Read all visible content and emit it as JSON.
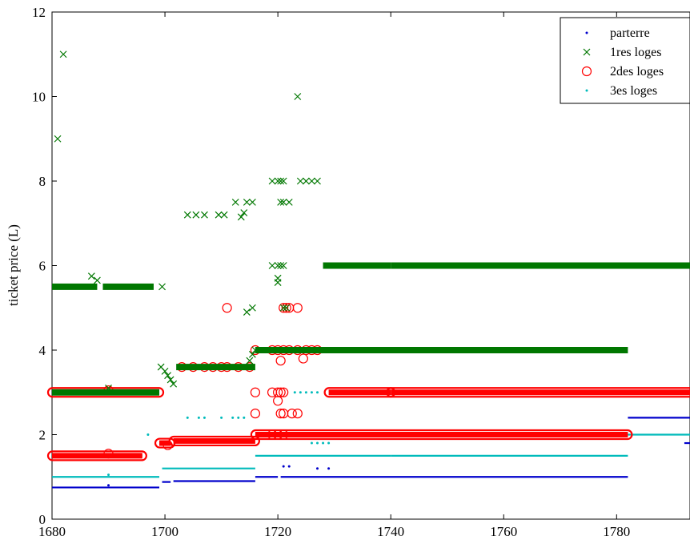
{
  "chart_data": {
    "type": "scatter",
    "title": "",
    "xlabel": "",
    "ylabel": "ticket price (L)",
    "xlim": [
      1680,
      1793
    ],
    "ylim": [
      0,
      12
    ],
    "xticks": [
      1680,
      1700,
      1720,
      1740,
      1760,
      1780
    ],
    "yticks": [
      0,
      2,
      4,
      6,
      8,
      10,
      12
    ],
    "grid": false,
    "legend_position": "top-right",
    "series": [
      {
        "name": "parterre",
        "marker": "dot",
        "color": "#0000cc",
        "segments": [
          {
            "x": [
              1680,
              1699
            ],
            "y": 0.75
          },
          {
            "x": [
              1699.5,
              1701
            ],
            "y": 0.88
          },
          {
            "x": [
              1701.5,
              1716
            ],
            "y": 0.9
          },
          {
            "x": [
              1716,
              1720
            ],
            "y": 1.0
          },
          {
            "x": [
              1720.5,
              1782
            ],
            "y": 1.0
          },
          {
            "x": [
              1782,
              1793
            ],
            "y": 2.4
          },
          {
            "x": [
              1792,
              1793
            ],
            "y": 1.8
          }
        ],
        "points": [
          [
            1690,
            0.8
          ],
          [
            1721,
            1.25
          ],
          [
            1722,
            1.25
          ],
          [
            1727,
            1.2
          ],
          [
            1729,
            1.2
          ]
        ]
      },
      {
        "name": "1res loges",
        "marker": "x",
        "color": "#007700",
        "segments": [
          {
            "x": [
              1680,
              1688
            ],
            "y": 5.5
          },
          {
            "x": [
              1689,
              1698
            ],
            "y": 5.5
          },
          {
            "x": [
              1680,
              1699
            ],
            "y": 3.0
          },
          {
            "x": [
              1702,
              1716
            ],
            "y": 3.6
          },
          {
            "x": [
              1716,
              1782
            ],
            "y": 4.0
          },
          {
            "x": [
              1728,
              1740
            ],
            "y": 6.0
          },
          {
            "x": [
              1740,
              1793
            ],
            "y": 6.0
          }
        ],
        "points": [
          [
            1681,
            9.0
          ],
          [
            1682,
            11.0
          ],
          [
            1687,
            5.75
          ],
          [
            1688,
            5.65
          ],
          [
            1699.5,
            5.5
          ],
          [
            1699.3,
            3.6
          ],
          [
            1700,
            3.5
          ],
          [
            1700.5,
            3.4
          ],
          [
            1701,
            3.3
          ],
          [
            1701.5,
            3.2
          ],
          [
            1690,
            3.1
          ],
          [
            1704,
            7.2
          ],
          [
            1705.5,
            7.2
          ],
          [
            1707,
            7.2
          ],
          [
            1709.5,
            7.2
          ],
          [
            1710.5,
            7.2
          ],
          [
            1712.5,
            7.5
          ],
          [
            1713.5,
            7.15
          ],
          [
            1714,
            7.25
          ],
          [
            1714.5,
            7.5
          ],
          [
            1715.5,
            7.5
          ],
          [
            1714.5,
            4.9
          ],
          [
            1715.5,
            5.0
          ],
          [
            1715,
            3.75
          ],
          [
            1715.5,
            3.9
          ],
          [
            1716,
            4.0
          ],
          [
            1719,
            6.0
          ],
          [
            1720,
            6.0
          ],
          [
            1720.5,
            6.0
          ],
          [
            1721,
            6.0
          ],
          [
            1719,
            8.0
          ],
          [
            1720,
            8.0
          ],
          [
            1720.5,
            8.0
          ],
          [
            1721,
            8.0
          ],
          [
            1720.5,
            7.5
          ],
          [
            1721,
            7.5
          ],
          [
            1722,
            7.5
          ],
          [
            1720,
            5.7
          ],
          [
            1720,
            5.6
          ],
          [
            1721,
            5.0
          ],
          [
            1721.5,
            5.0
          ],
          [
            1723.5,
            10.0
          ],
          [
            1724,
            8.0
          ],
          [
            1725,
            8.0
          ],
          [
            1726,
            8.0
          ],
          [
            1727,
            8.0
          ]
        ]
      },
      {
        "name": "2des loges",
        "marker": "circle",
        "color": "#ff0000",
        "segments": [
          {
            "x": [
              1680,
              1699
            ],
            "y": 3.0
          },
          {
            "x": [
              1680,
              1696
            ],
            "y": 1.5
          },
          {
            "x": [
              1699,
              1701
            ],
            "y": 1.8
          },
          {
            "x": [
              1701.5,
              1716
            ],
            "y": 1.85
          },
          {
            "x": [
              1716,
              1782
            ],
            "y": 2.0
          },
          {
            "x": [
              1729,
              1740
            ],
            "y": 3.0
          },
          {
            "x": [
              1740,
              1793
            ],
            "y": 3.0
          }
        ],
        "points": [
          [
            1690,
            1.55
          ],
          [
            1690,
            3.05
          ],
          [
            1700.5,
            1.75
          ],
          [
            1711,
            5.0
          ],
          [
            1703,
            3.6
          ],
          [
            1705,
            3.6
          ],
          [
            1707,
            3.6
          ],
          [
            1708.5,
            3.6
          ],
          [
            1710,
            3.6
          ],
          [
            1711,
            3.6
          ],
          [
            1713,
            3.6
          ],
          [
            1715,
            3.6
          ],
          [
            1716,
            3.0
          ],
          [
            1716,
            2.5
          ],
          [
            1716,
            4.0
          ],
          [
            1719,
            3.0
          ],
          [
            1720,
            3.0
          ],
          [
            1720.5,
            3.0
          ],
          [
            1721,
            3.0
          ],
          [
            1720.5,
            2.5
          ],
          [
            1721,
            2.5
          ],
          [
            1722.5,
            2.5
          ],
          [
            1723.5,
            2.5
          ],
          [
            1720,
            2.8
          ],
          [
            1720.5,
            3.75
          ],
          [
            1719,
            4.0
          ],
          [
            1720,
            4.0
          ],
          [
            1721,
            4.0
          ],
          [
            1722,
            4.0
          ],
          [
            1723.5,
            4.0
          ],
          [
            1724.5,
            3.8
          ],
          [
            1725,
            4.0
          ],
          [
            1726,
            4.0
          ],
          [
            1727,
            4.0
          ],
          [
            1721,
            5.0
          ],
          [
            1721.5,
            5.0
          ],
          [
            1722,
            5.0
          ],
          [
            1723.5,
            5.0
          ],
          [
            1719,
            2.0
          ],
          [
            1720,
            2.0
          ],
          [
            1721,
            2.0
          ]
        ]
      },
      {
        "name": "3es loges",
        "marker": "dot",
        "color": "#00bbbb",
        "segments": [
          {
            "x": [
              1680,
              1696
            ],
            "y": 1.5
          },
          {
            "x": [
              1680,
              1699
            ],
            "y": 1.0
          },
          {
            "x": [
              1699.5,
              1716
            ],
            "y": 1.2
          },
          {
            "x": [
              1716,
              1740
            ],
            "y": 1.5
          },
          {
            "x": [
              1740,
              1782
            ],
            "y": 1.5
          },
          {
            "x": [
              1716,
              1740
            ],
            "y": 2.0
          },
          {
            "x": [
              1740,
              1793
            ],
            "y": 2.0
          }
        ],
        "points": [
          [
            1690,
            1.05
          ],
          [
            1697,
            2.0
          ],
          [
            1704,
            2.4
          ],
          [
            1706,
            2.4
          ],
          [
            1707,
            2.4
          ],
          [
            1710,
            2.4
          ],
          [
            1712,
            2.4
          ],
          [
            1713,
            2.4
          ],
          [
            1714,
            2.4
          ],
          [
            1723,
            3.0
          ],
          [
            1724,
            3.0
          ],
          [
            1725,
            3.0
          ],
          [
            1726,
            3.0
          ],
          [
            1727,
            3.0
          ],
          [
            1726,
            1.8
          ],
          [
            1727,
            1.8
          ],
          [
            1728,
            1.8
          ],
          [
            1729,
            1.8
          ]
        ]
      }
    ]
  }
}
